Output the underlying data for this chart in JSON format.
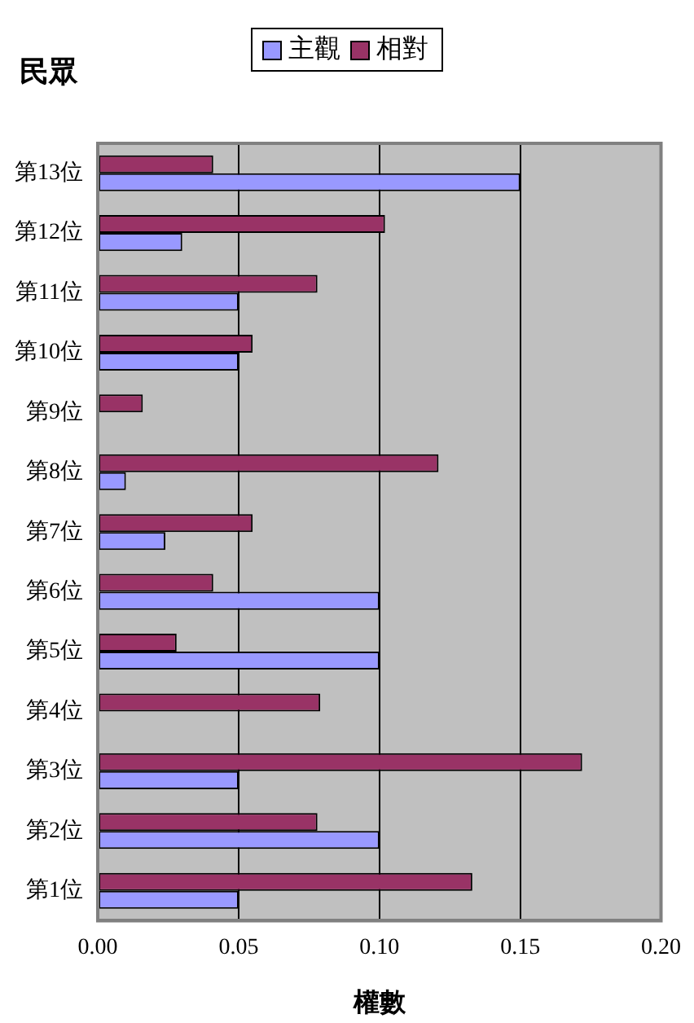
{
  "chart_data": {
    "type": "bar",
    "orientation": "horizontal",
    "ylabel": "民眾",
    "xlabel": "權數",
    "categories": [
      "第13位",
      "第12位",
      "第11位",
      "第10位",
      "第9位",
      "第8位",
      "第7位",
      "第6位",
      "第5位",
      "第4位",
      "第3位",
      "第2位",
      "第1位"
    ],
    "series": [
      {
        "name": "主觀",
        "color": "#9999ff",
        "values": [
          0.15,
          0.03,
          0.05,
          0.05,
          0,
          0.01,
          0.024,
          0.1,
          0.1,
          0,
          0.05,
          0.1,
          0.05
        ]
      },
      {
        "name": "相對",
        "color": "#993366",
        "values": [
          0.041,
          0.102,
          0.078,
          0.055,
          0.016,
          0.121,
          0.055,
          0.041,
          0.028,
          0.079,
          0.172,
          0.078,
          0.133
        ]
      }
    ],
    "xlim": [
      0,
      0.2
    ],
    "xticks": [
      {
        "value": 0,
        "label": "0.00"
      },
      {
        "value": 0.05,
        "label": "0.05"
      },
      {
        "value": 0.1,
        "label": "0.10"
      },
      {
        "value": 0.15,
        "label": "0.15"
      },
      {
        "value": 0.2,
        "label": "0.20"
      }
    ],
    "grid": "x",
    "legend": "top"
  }
}
